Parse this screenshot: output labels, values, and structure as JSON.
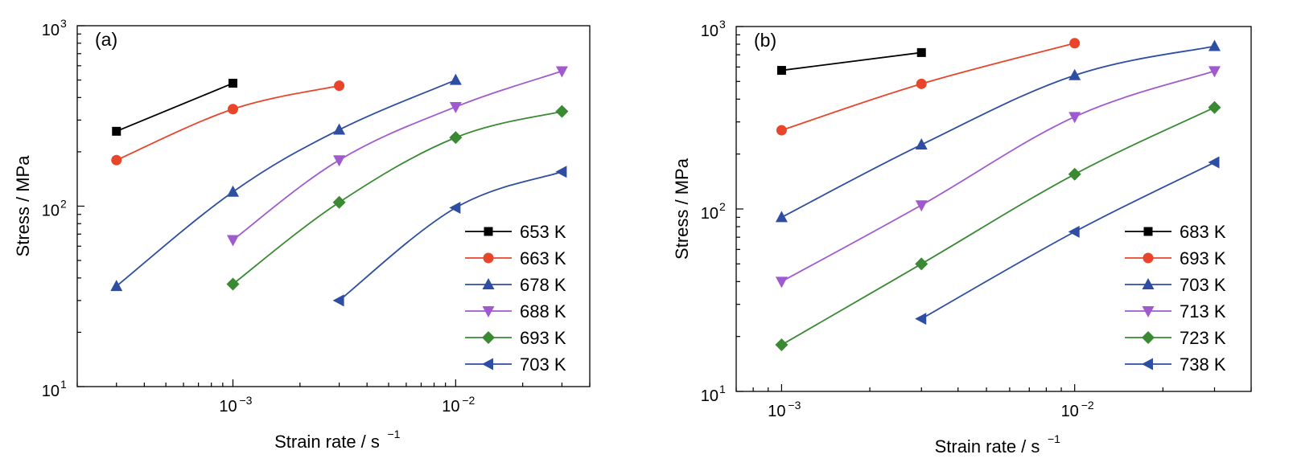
{
  "chart_data": [
    {
      "type": "line",
      "panel_label": "(a)",
      "xlabel": "Strain rate / s",
      "xlabel_exp": "−1",
      "ylabel": "Stress / MPa",
      "xscale": "log",
      "yscale": "log",
      "xlim": [
        0.0002,
        0.04
      ],
      "ylim": [
        10,
        1000
      ],
      "x_ticks": [
        {
          "value": 0.001,
          "base": "10",
          "exp": "-3"
        },
        {
          "value": 0.01,
          "base": "10",
          "exp": "-2"
        }
      ],
      "y_ticks": [
        {
          "value": 10,
          "base": "10",
          "exp": "1"
        },
        {
          "value": 100,
          "base": "10",
          "exp": "2"
        },
        {
          "value": 1000,
          "base": "10",
          "exp": "3"
        }
      ],
      "legend_position": "bottom-right",
      "series": [
        {
          "name": "653 K",
          "color": "#000000",
          "marker": "square",
          "x": [
            0.0003,
            0.001
          ],
          "y": [
            260,
            480
          ]
        },
        {
          "name": "663 K",
          "color": "#e8452b",
          "marker": "circle",
          "x": [
            0.0003,
            0.001,
            0.003
          ],
          "y": [
            180,
            345,
            465
          ]
        },
        {
          "name": "678 K",
          "color": "#2e4ea3",
          "marker": "triangle-up",
          "x": [
            0.0003,
            0.001,
            0.003,
            0.01
          ],
          "y": [
            36,
            120,
            265,
            500
          ]
        },
        {
          "name": "688 K",
          "color": "#a05ad0",
          "marker": "triangle-down",
          "x": [
            0.001,
            0.003,
            0.01,
            0.03
          ],
          "y": [
            65,
            180,
            355,
            560
          ]
        },
        {
          "name": "693 K",
          "color": "#3a8a34",
          "marker": "diamond",
          "x": [
            0.001,
            0.003,
            0.01,
            0.03
          ],
          "y": [
            37,
            105,
            240,
            335
          ]
        },
        {
          "name": "703 K",
          "color": "#2e4ea3",
          "marker": "triangle-left",
          "x": [
            0.003,
            0.01,
            0.03
          ],
          "y": [
            30,
            98,
            155
          ]
        }
      ]
    },
    {
      "type": "line",
      "panel_label": "(b)",
      "xlabel": "Strain rate / s",
      "xlabel_exp": "−1",
      "ylabel": "Stress / MPa",
      "xscale": "log",
      "yscale": "log",
      "xlim": [
        0.0007,
        0.04
      ],
      "ylim": [
        10,
        1000
      ],
      "x_ticks": [
        {
          "value": 0.001,
          "base": "10",
          "exp": "-3"
        },
        {
          "value": 0.01,
          "base": "10",
          "exp": "-2"
        }
      ],
      "y_ticks": [
        {
          "value": 10,
          "base": "10",
          "exp": "1"
        },
        {
          "value": 100,
          "base": "10",
          "exp": "2"
        },
        {
          "value": 1000,
          "base": "10",
          "exp": "3"
        }
      ],
      "legend_position": "bottom-right",
      "series": [
        {
          "name": "683 K",
          "color": "#000000",
          "marker": "square",
          "x": [
            0.001,
            0.003
          ],
          "y": [
            575,
            720
          ]
        },
        {
          "name": "693 K",
          "color": "#e8452b",
          "marker": "circle",
          "x": [
            0.001,
            0.003,
            0.01
          ],
          "y": [
            270,
            485,
            810
          ]
        },
        {
          "name": "703 K",
          "color": "#2e4ea3",
          "marker": "triangle-up",
          "x": [
            0.001,
            0.003,
            0.01,
            0.03
          ],
          "y": [
            90,
            225,
            540,
            780
          ]
        },
        {
          "name": "713 K",
          "color": "#a05ad0",
          "marker": "triangle-down",
          "x": [
            0.001,
            0.003,
            0.01,
            0.03
          ],
          "y": [
            40,
            105,
            320,
            570
          ]
        },
        {
          "name": "723 K",
          "color": "#3a8a34",
          "marker": "diamond",
          "x": [
            0.001,
            0.003,
            0.01,
            0.03
          ],
          "y": [
            18,
            50,
            155,
            360
          ]
        },
        {
          "name": "738 K",
          "color": "#2e4ea3",
          "marker": "triangle-left",
          "x": [
            0.003,
            0.01,
            0.03
          ],
          "y": [
            25,
            75,
            180
          ]
        }
      ]
    }
  ]
}
